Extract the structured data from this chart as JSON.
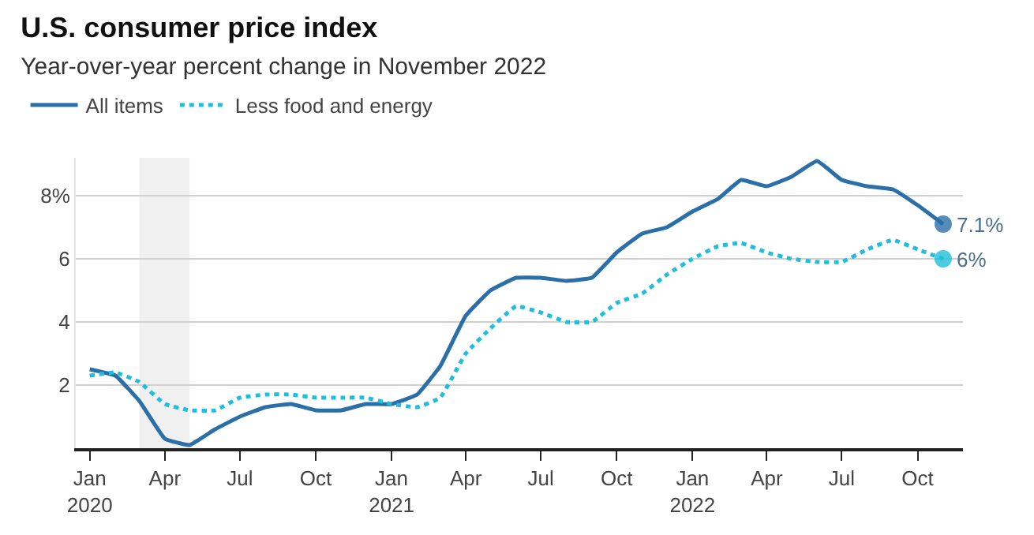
{
  "chart_data": {
    "type": "line",
    "title": "U.S. consumer price index",
    "subtitle": "Year-over-year percent change in November 2022",
    "x": [
      "2020-01",
      "2020-02",
      "2020-03",
      "2020-04",
      "2020-05",
      "2020-06",
      "2020-07",
      "2020-08",
      "2020-09",
      "2020-10",
      "2020-11",
      "2020-12",
      "2021-01",
      "2021-02",
      "2021-03",
      "2021-04",
      "2021-05",
      "2021-06",
      "2021-07",
      "2021-08",
      "2021-09",
      "2021-10",
      "2021-11",
      "2021-12",
      "2022-01",
      "2022-02",
      "2022-03",
      "2022-04",
      "2022-05",
      "2022-06",
      "2022-07",
      "2022-08",
      "2022-09",
      "2022-10",
      "2022-11"
    ],
    "series": [
      {
        "name": "All items",
        "color": "#2a6fa8",
        "line_style": "solid",
        "values": [
          2.5,
          2.3,
          1.5,
          0.3,
          0.1,
          0.6,
          1.0,
          1.3,
          1.4,
          1.2,
          1.2,
          1.4,
          1.4,
          1.7,
          2.6,
          4.2,
          5.0,
          5.4,
          5.4,
          5.3,
          5.4,
          6.2,
          6.8,
          7.0,
          7.5,
          7.9,
          8.5,
          8.3,
          8.6,
          9.1,
          8.5,
          8.3,
          8.2,
          7.7,
          7.1
        ]
      },
      {
        "name": "Less food and energy",
        "color": "#1fbedc",
        "line_style": "dotted",
        "values": [
          2.3,
          2.4,
          2.1,
          1.4,
          1.2,
          1.2,
          1.6,
          1.7,
          1.7,
          1.6,
          1.6,
          1.6,
          1.4,
          1.3,
          1.6,
          3.0,
          3.8,
          4.5,
          4.3,
          4.0,
          4.0,
          4.6,
          4.9,
          5.5,
          6.0,
          6.4,
          6.5,
          6.2,
          6.0,
          5.9,
          5.9,
          6.3,
          6.6,
          6.3,
          6.0
        ]
      }
    ],
    "xlim": [
      "2019-12-15",
      "2022-11-25"
    ],
    "xticks": [
      {
        "value": "2020-01",
        "label": "Jan\n2020"
      },
      {
        "value": "2020-04",
        "label": "Apr"
      },
      {
        "value": "2020-07",
        "label": "Jul"
      },
      {
        "value": "2020-10",
        "label": "Oct"
      },
      {
        "value": "2021-01",
        "label": "Jan\n2021"
      },
      {
        "value": "2021-04",
        "label": "Apr"
      },
      {
        "value": "2021-07",
        "label": "Jul"
      },
      {
        "value": "2021-10",
        "label": "Oct"
      },
      {
        "value": "2022-01",
        "label": "Jan\n2022"
      },
      {
        "value": "2022-04",
        "label": "Apr"
      },
      {
        "value": "2022-07",
        "label": "Jul"
      },
      {
        "value": "2022-10",
        "label": "Oct"
      }
    ],
    "ylim": [
      0,
      9.2
    ],
    "yticks": [
      2,
      4,
      6,
      {
        "value": 8,
        "label": "8%"
      }
    ],
    "bands": [
      {
        "axis": "x",
        "from": "2020-03-01",
        "to": "2020-05-01",
        "color": "#f0f0f0"
      }
    ],
    "annotations": [
      {
        "text": "7.1%",
        "x": "2022-11",
        "y": 7.1
      },
      {
        "text": "6%",
        "x": "2022-11",
        "y": 6.0
      }
    ],
    "grid": "y",
    "legend": "top left"
  }
}
